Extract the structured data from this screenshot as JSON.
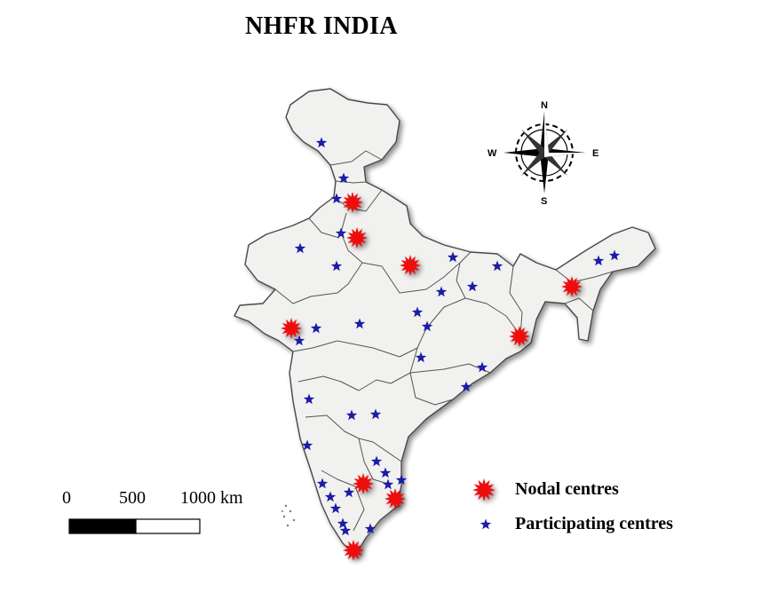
{
  "title": "NHFR INDIA",
  "compass": {
    "north": "N",
    "south": "S",
    "east": "E",
    "west": "W"
  },
  "scale_bar": {
    "labels": [
      "0",
      "500",
      "1000 km"
    ]
  },
  "legend": {
    "nodal_label": "Nodal centres",
    "participating_label": "Participating centres"
  },
  "colors": {
    "land": "#f1f1ef",
    "border": "#4a4a4a",
    "nodal": "#ee1111",
    "participating": "#1c1ca8"
  },
  "markers": {
    "nodal_count": 9,
    "participating_count": 35
  }
}
